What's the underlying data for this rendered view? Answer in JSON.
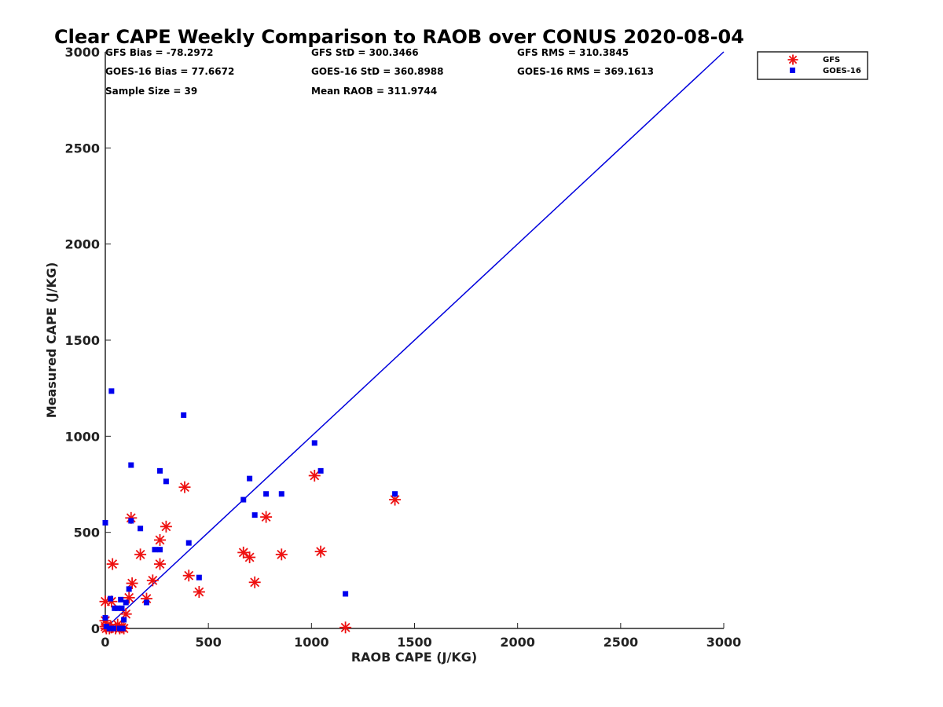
{
  "chart_data": {
    "type": "scatter",
    "title": "Clear CAPE Weekly Comparison to RAOB over CONUS 2020-08-04",
    "xlabel": "RAOB CAPE (J/KG)",
    "ylabel": "Measured CAPE (J/KG)",
    "xlim": [
      0,
      3000
    ],
    "ylim": [
      0,
      3000
    ],
    "xticks": [
      "0",
      "500",
      "1000",
      "1500",
      "2000",
      "2500",
      "3000"
    ],
    "yticks": [
      "0",
      "500",
      "1000",
      "1500",
      "2000",
      "2500",
      "3000"
    ],
    "grid": false,
    "legend_position": "top-right",
    "stats": [
      "GFS Bias = -78.2972",
      "GFS StD = 300.3466",
      "GFS RMS = 310.3845",
      "GOES-16 Bias = 77.6672",
      "GOES-16 StD = 360.8988",
      "GOES-16 RMS = 369.1613",
      "Sample Size = 39",
      "Mean RAOB = 311.9744"
    ],
    "reference_line": {
      "x": [
        0,
        3000
      ],
      "y": [
        0,
        3000
      ],
      "color": "#0000dd"
    },
    "series": [
      {
        "name": "GFS",
        "marker": "asterisk",
        "color": "#ee1111",
        "points": [
          [
            0,
            140
          ],
          [
            0,
            40
          ],
          [
            0,
            10
          ],
          [
            5,
            0
          ],
          [
            10,
            15
          ],
          [
            20,
            0
          ],
          [
            30,
            5
          ],
          [
            30,
            140
          ],
          [
            35,
            335
          ],
          [
            50,
            0
          ],
          [
            60,
            20
          ],
          [
            70,
            0
          ],
          [
            80,
            5
          ],
          [
            90,
            0
          ],
          [
            100,
            75
          ],
          [
            115,
            160
          ],
          [
            125,
            575
          ],
          [
            130,
            235
          ],
          [
            170,
            385
          ],
          [
            200,
            155
          ],
          [
            230,
            250
          ],
          [
            265,
            460
          ],
          [
            265,
            335
          ],
          [
            295,
            530
          ],
          [
            385,
            735
          ],
          [
            405,
            275
          ],
          [
            455,
            190
          ],
          [
            670,
            395
          ],
          [
            700,
            370
          ],
          [
            725,
            240
          ],
          [
            780,
            580
          ],
          [
            855,
            385
          ],
          [
            1015,
            795
          ],
          [
            1045,
            400
          ],
          [
            1165,
            5
          ],
          [
            1405,
            670
          ]
        ]
      },
      {
        "name": "GOES-16",
        "marker": "square",
        "color": "#0000ee",
        "points": [
          [
            0,
            550
          ],
          [
            0,
            55
          ],
          [
            5,
            10
          ],
          [
            20,
            0
          ],
          [
            25,
            155
          ],
          [
            30,
            1235
          ],
          [
            40,
            0
          ],
          [
            45,
            105
          ],
          [
            60,
            105
          ],
          [
            70,
            0
          ],
          [
            75,
            150
          ],
          [
            80,
            105
          ],
          [
            85,
            0
          ],
          [
            90,
            45
          ],
          [
            100,
            135
          ],
          [
            115,
            205
          ],
          [
            125,
            560
          ],
          [
            125,
            850
          ],
          [
            170,
            520
          ],
          [
            200,
            135
          ],
          [
            240,
            410
          ],
          [
            265,
            820
          ],
          [
            265,
            410
          ],
          [
            295,
            765
          ],
          [
            380,
            1110
          ],
          [
            405,
            445
          ],
          [
            455,
            265
          ],
          [
            670,
            670
          ],
          [
            700,
            780
          ],
          [
            725,
            590
          ],
          [
            780,
            700
          ],
          [
            855,
            700
          ],
          [
            1015,
            965
          ],
          [
            1045,
            820
          ],
          [
            1165,
            180
          ],
          [
            1405,
            700
          ]
        ]
      }
    ]
  }
}
